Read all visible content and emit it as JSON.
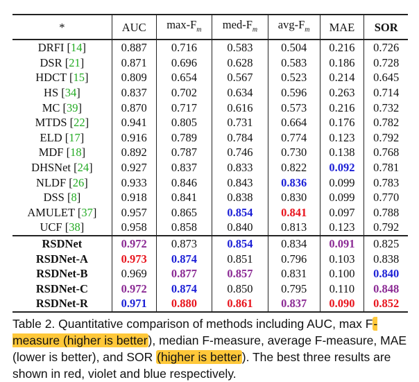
{
  "table": {
    "headers": [
      "*",
      "AUC",
      "max-F",
      "med-F",
      "avg-F",
      "MAE",
      "SOR"
    ],
    "f_subscript": "m",
    "rows": [
      {
        "method": "DRFI",
        "ref": "14",
        "ours": false,
        "values": [
          "0.887",
          "0.716",
          "0.583",
          "0.504",
          "0.216",
          "0.726"
        ],
        "ranks": [
          "",
          "",
          "",
          "",
          "",
          ""
        ]
      },
      {
        "method": "DSR",
        "ref": "21",
        "ours": false,
        "values": [
          "0.871",
          "0.696",
          "0.628",
          "0.583",
          "0.186",
          "0.728"
        ],
        "ranks": [
          "",
          "",
          "",
          "",
          "",
          ""
        ]
      },
      {
        "method": "HDCT",
        "ref": "15",
        "ours": false,
        "values": [
          "0.809",
          "0.654",
          "0.567",
          "0.523",
          "0.214",
          "0.645"
        ],
        "ranks": [
          "",
          "",
          "",
          "",
          "",
          ""
        ]
      },
      {
        "method": "HS",
        "ref": "34",
        "ours": false,
        "values": [
          "0.837",
          "0.702",
          "0.634",
          "0.596",
          "0.263",
          "0.714"
        ],
        "ranks": [
          "",
          "",
          "",
          "",
          "",
          ""
        ]
      },
      {
        "method": "MC",
        "ref": "39",
        "ours": false,
        "values": [
          "0.870",
          "0.717",
          "0.616",
          "0.573",
          "0.216",
          "0.732"
        ],
        "ranks": [
          "",
          "",
          "",
          "",
          "",
          ""
        ]
      },
      {
        "method": "MTDS",
        "ref": "22",
        "ours": false,
        "values": [
          "0.941",
          "0.805",
          "0.731",
          "0.664",
          "0.176",
          "0.782"
        ],
        "ranks": [
          "",
          "",
          "",
          "",
          "",
          ""
        ]
      },
      {
        "method": "ELD",
        "ref": "17",
        "ours": false,
        "values": [
          "0.916",
          "0.789",
          "0.784",
          "0.774",
          "0.123",
          "0.792"
        ],
        "ranks": [
          "",
          "",
          "",
          "",
          "",
          ""
        ]
      },
      {
        "method": "MDF",
        "ref": "18",
        "ours": false,
        "values": [
          "0.892",
          "0.787",
          "0.746",
          "0.730",
          "0.138",
          "0.768"
        ],
        "ranks": [
          "",
          "",
          "",
          "",
          "",
          ""
        ]
      },
      {
        "method": "DHSNet",
        "ref": "24",
        "ours": false,
        "values": [
          "0.927",
          "0.837",
          "0.833",
          "0.822",
          "0.092",
          "0.781"
        ],
        "ranks": [
          "",
          "",
          "",
          "",
          "third",
          ""
        ]
      },
      {
        "method": "NLDF",
        "ref": "26",
        "ours": false,
        "values": [
          "0.933",
          "0.846",
          "0.843",
          "0.836",
          "0.099",
          "0.783"
        ],
        "ranks": [
          "",
          "",
          "",
          "third",
          "",
          ""
        ]
      },
      {
        "method": "DSS",
        "ref": "8",
        "ours": false,
        "values": [
          "0.918",
          "0.841",
          "0.838",
          "0.830",
          "0.099",
          "0.770"
        ],
        "ranks": [
          "",
          "",
          "",
          "",
          "",
          ""
        ]
      },
      {
        "method": "AMULET",
        "ref": "37",
        "ours": false,
        "values": [
          "0.957",
          "0.865",
          "0.854",
          "0.841",
          "0.097",
          "0.788"
        ],
        "ranks": [
          "",
          "",
          "third",
          "best",
          "",
          ""
        ]
      },
      {
        "method": "UCF",
        "ref": "38",
        "ours": false,
        "values": [
          "0.958",
          "0.858",
          "0.840",
          "0.813",
          "0.123",
          "0.792"
        ],
        "ranks": [
          "",
          "",
          "",
          "",
          "",
          ""
        ]
      },
      {
        "method": "RSDNet",
        "ref": "",
        "ours": true,
        "values": [
          "0.972",
          "0.873",
          "0.854",
          "0.834",
          "0.091",
          "0.825"
        ],
        "ranks": [
          "second",
          "",
          "third",
          "",
          "second",
          ""
        ]
      },
      {
        "method": "RSDNet-A",
        "ref": "",
        "ours": true,
        "values": [
          "0.973",
          "0.874",
          "0.851",
          "0.796",
          "0.103",
          "0.838"
        ],
        "ranks": [
          "best",
          "third",
          "",
          "",
          "",
          ""
        ]
      },
      {
        "method": "RSDNet-B",
        "ref": "",
        "ours": true,
        "values": [
          "0.969",
          "0.877",
          "0.857",
          "0.831",
          "0.100",
          "0.840"
        ],
        "ranks": [
          "",
          "second",
          "second",
          "",
          "",
          "third"
        ]
      },
      {
        "method": "RSDNet-C",
        "ref": "",
        "ours": true,
        "values": [
          "0.972",
          "0.874",
          "0.850",
          "0.795",
          "0.110",
          "0.848"
        ],
        "ranks": [
          "second",
          "third",
          "",
          "",
          "",
          "second"
        ]
      },
      {
        "method": "RSDNet-R",
        "ref": "",
        "ours": true,
        "values": [
          "0.971",
          "0.880",
          "0.861",
          "0.837",
          "0.090",
          "0.852"
        ],
        "ranks": [
          "third",
          "best",
          "best",
          "second",
          "best",
          "best"
        ]
      }
    ]
  },
  "caption": {
    "part1": "Table 2. Quantitative comparison of methods including AUC, max F",
    "hl1": "-measure (higher is better",
    "part2": "), median F-measure, average F-measure, MAE (lower is better), and SOR ",
    "hl2": "(higher is better",
    "part3": "). The best three results are shown in red, violet and blue respectively."
  },
  "colors": {
    "best": "#e8141d",
    "second": "#8b2a94",
    "third": "#1b1fd6",
    "highlight": "#ffc83a",
    "ref": "#22aa22"
  }
}
